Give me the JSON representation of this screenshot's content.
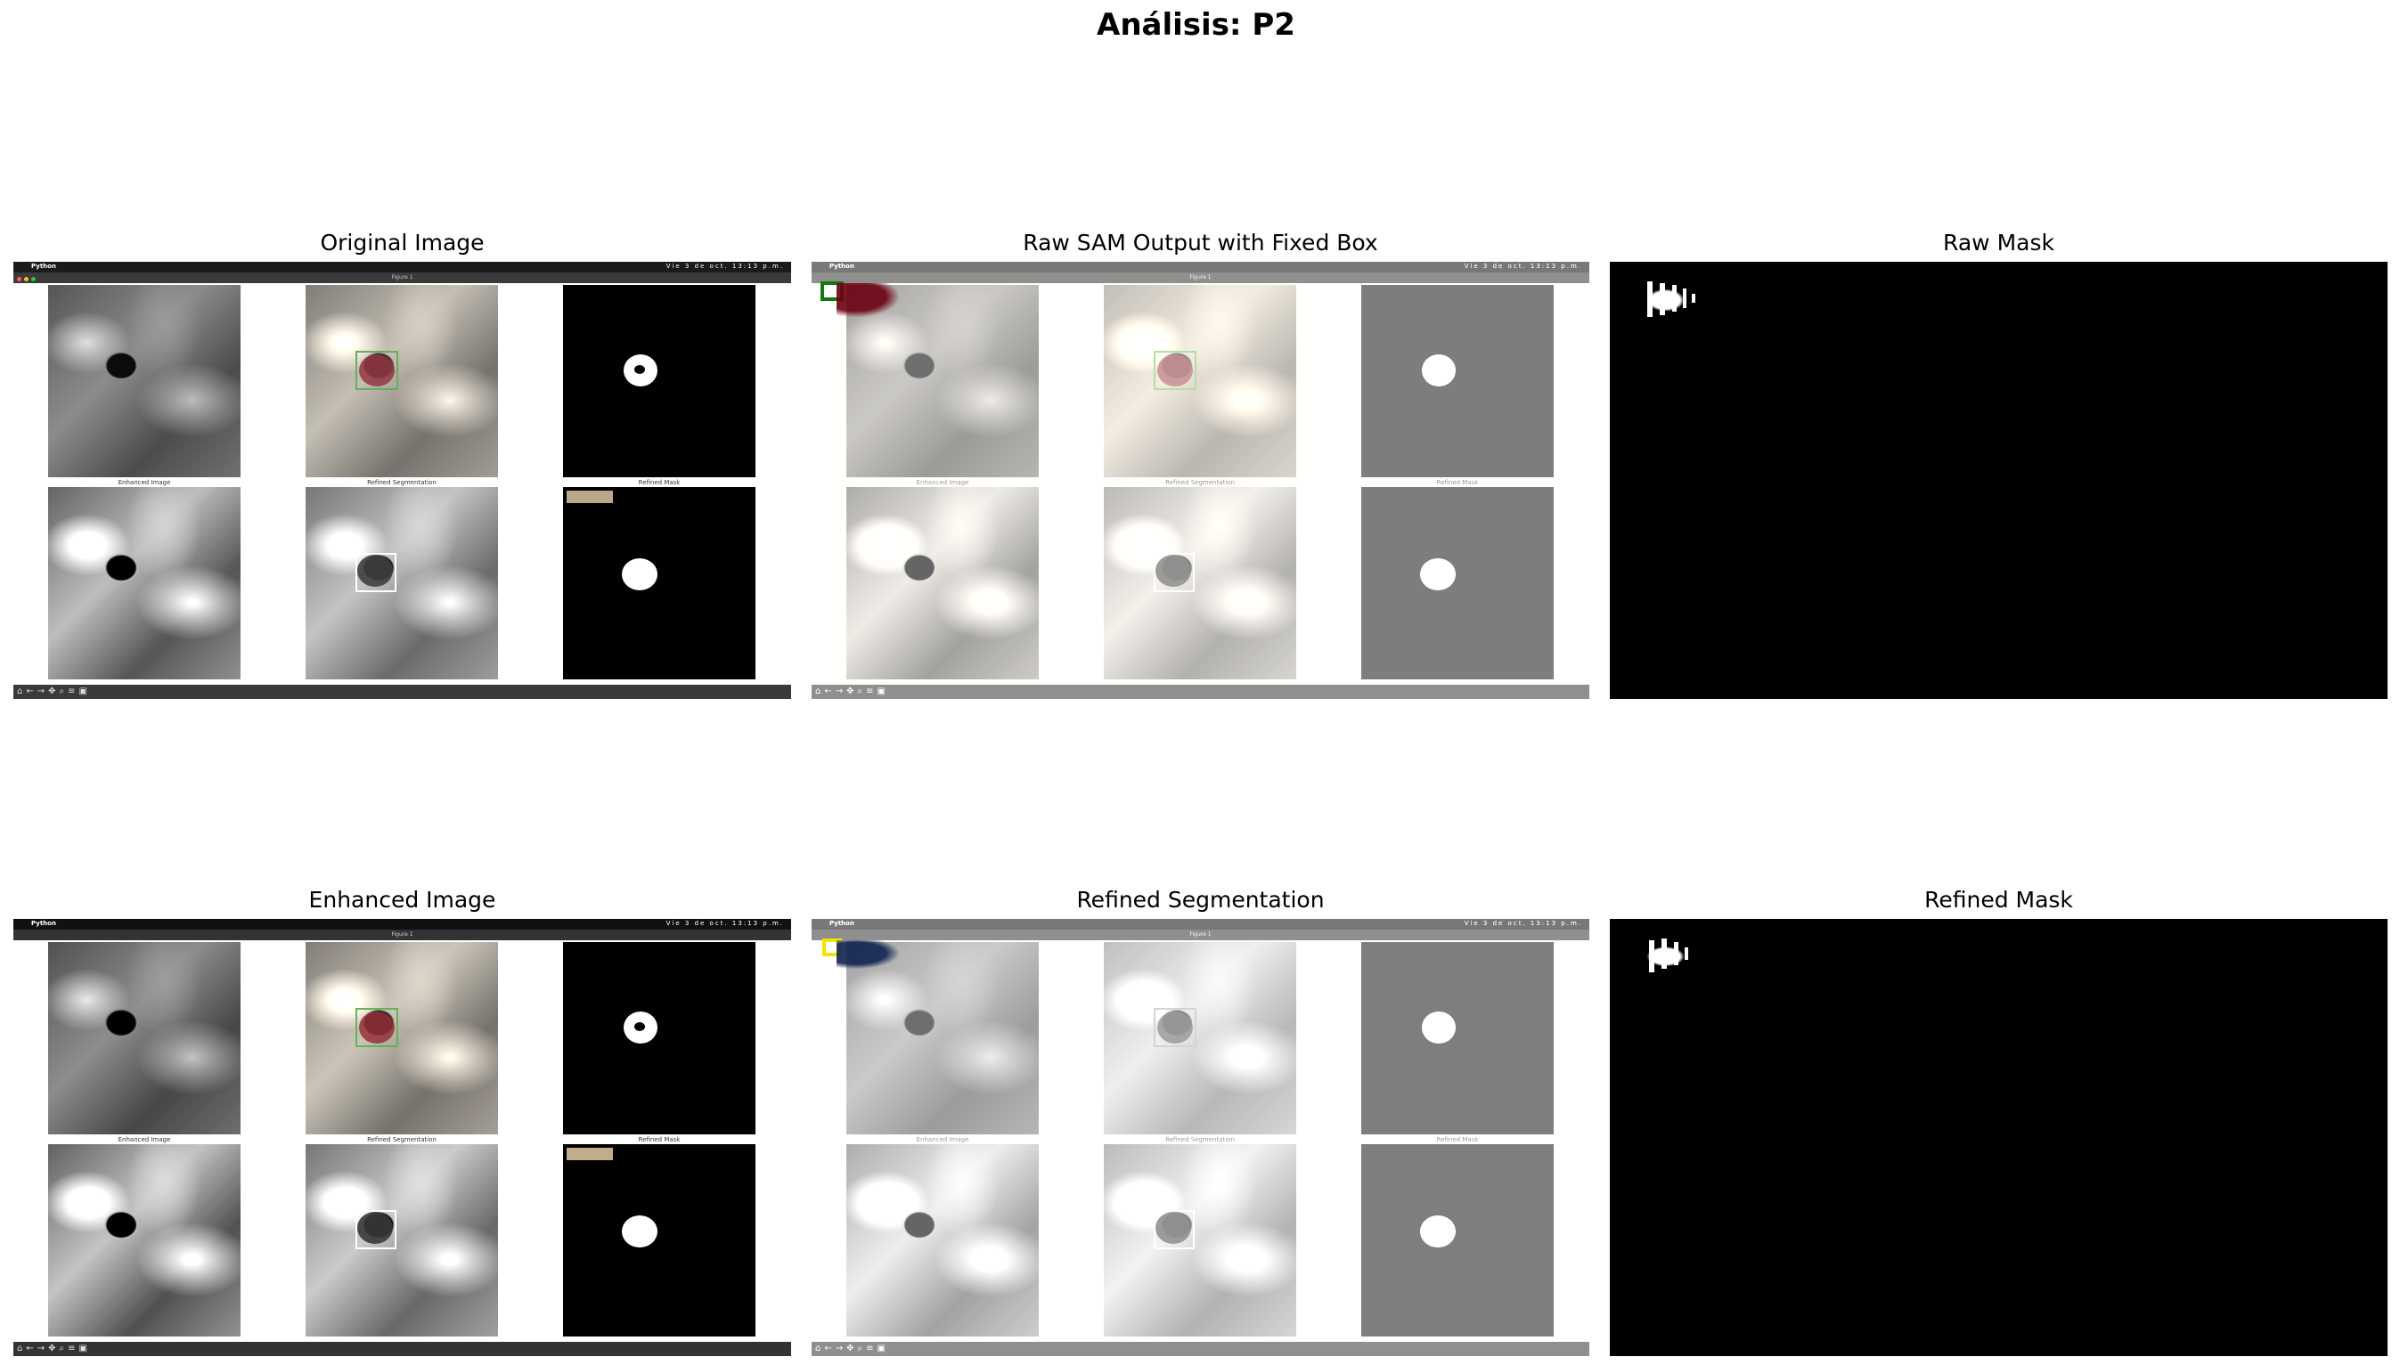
{
  "figure": {
    "title": "Análisis: P2"
  },
  "panels": [
    {
      "title": "Original Image"
    },
    {
      "title": "Raw SAM Output with Fixed Box"
    },
    {
      "title": "Raw Mask"
    },
    {
      "title": "Enhanced Image"
    },
    {
      "title": "Refined Segmentation"
    },
    {
      "title": "Refined Mask"
    }
  ],
  "embedded": {
    "app_name": "Python",
    "window_title": "Figure 1",
    "clock": "Vie 3 de oct. 13:13 p.m.",
    "captions": [
      "Enhanced Image",
      "Refined Segmentation",
      "Refined Mask"
    ],
    "toolbar_icons": [
      "home-icon",
      "back-icon",
      "forward-icon",
      "pan-icon",
      "zoom-icon",
      "configure-icon",
      "save-icon"
    ],
    "colors": {
      "green_box": "#2e8b2e",
      "yellow_box": "#f2e600",
      "red_mask": "#7a1020",
      "blue_mask": "#1c2e5a"
    }
  }
}
